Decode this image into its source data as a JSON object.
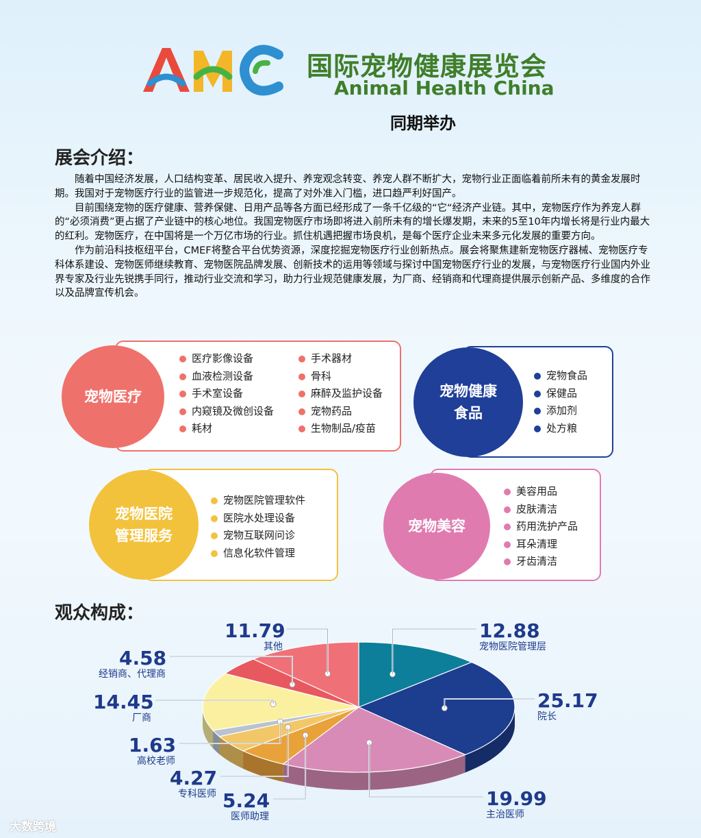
{
  "header": {
    "logo_text": "AHC",
    "title_cn": "国际宠物健康展览会",
    "title_en": "Animal Health China",
    "cohost": "同期举办"
  },
  "intro": {
    "heading": "展会介绍：",
    "paragraphs": [
      "随着中国经济发展，人口结构变革、居民收入提升、养宠观念转变、养宠人群不断扩大，宠物行业正面临着前所未有的黄金发展时期。我国对于宠物医疗行业的监管进一步规范化，提高了对外准入门槛，进口趋严利好国产。",
      "目前围绕宠物的医疗健康、营养保健、日用产品等各方面已经形成了一条千亿级的“它“经济产业链。其中，宠物医疗作为养宠人群的“必须消费”更占据了产业链中的核心地位。我国宠物医疗市场即将进入前所未有的增长爆发期，未来的5至10年内增长将是行业内最大的红利。宠物医疗，在中国将是一个万亿市场的行业。抓住机遇把握市场良机，是每个医疗企业未来多元化发展的重要方向。",
      "作为前沿科技枢纽平台，CMEF将整合平台优势资源，深度挖掘宠物医疗行业创新热点。展会将聚焦建新宠物医疗器械、宠物医疗专科体系建设、宠物医师继续教育、宠物医院品牌发展、创新技术的运用等领域与探讨中国宠物医疗行业的发展，与宠物医疗行业国内外业界专家及行业先锐携手同行，推动行业交流和学习，助力行业规范健康发展，为厂商、经销商和代理商提供展示创新产品、多维度的合作以及品牌宣传机会。"
    ]
  },
  "categories": {
    "medical": {
      "title_l1": "宠物医疗",
      "title_l2": "",
      "col1": [
        "医疗影像设备",
        "血液检测设备",
        "手术室设备",
        "内窥镜及微创设备",
        "耗材"
      ],
      "col2": [
        "手术器材",
        "骨科",
        "麻醉及监护设备",
        "宠物药品",
        "生物制品/疫苗"
      ],
      "color": "#ef716b"
    },
    "food": {
      "title_l1": "宠物健康",
      "title_l2": "食品",
      "items": [
        "宠物食品",
        "保健品",
        "添加剂",
        "处方粮"
      ],
      "color": "#1f3f98"
    },
    "hospital": {
      "title_l1": "宠物医院",
      "title_l2": "管理服务",
      "items": [
        "宠物医院管理软件",
        "医院水处理设备",
        "宠物互联网问诊",
        "信息化软件管理"
      ],
      "color": "#f3c23c"
    },
    "beauty": {
      "title_l1": "宠物美容",
      "title_l2": "",
      "items": [
        "美容用品",
        "皮肤清洁",
        "药用洗护产品",
        "耳朵清理",
        "牙齿清洁"
      ],
      "color": "#e07bb0"
    }
  },
  "audience": {
    "heading": "观众构成："
  },
  "chart_data": {
    "type": "pie",
    "title": "",
    "slices": [
      {
        "label": "宠物医院管理层",
        "value": 12.88,
        "color": "#0e7f9a"
      },
      {
        "label": "院长",
        "value": 25.17,
        "color": "#1d3d8f"
      },
      {
        "label": "主治医师",
        "value": 19.99,
        "color": "#d88bb6"
      },
      {
        "label": "医师助理",
        "value": 5.24,
        "color": "#e9a23a"
      },
      {
        "label": "专科医师",
        "value": 4.27,
        "color": "#f2c767"
      },
      {
        "label": "高校老师",
        "value": 1.63,
        "color": "#b9c3cf"
      },
      {
        "label": "厂商",
        "value": 14.45,
        "color": "#fbf0a0"
      },
      {
        "label": "经销商、代理商",
        "value": 4.58,
        "color": "#e8585f"
      },
      {
        "label": "其他",
        "value": 11.79,
        "color": "#ef7177"
      }
    ],
    "value_display": [
      "12.88",
      "25.17",
      "19.99",
      "5.24",
      "4.27",
      "1.63",
      "14.45",
      "4.58",
      "11.79"
    ],
    "value_color": "#1e3a8a",
    "label_color": "#1e3a8a"
  },
  "footer": {
    "watermark": "大数跨境"
  }
}
